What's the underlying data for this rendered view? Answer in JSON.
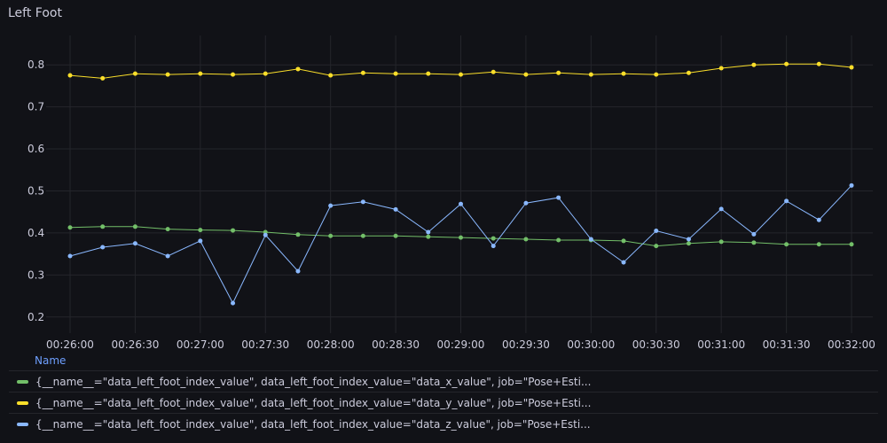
{
  "panel": {
    "title": "Left Foot"
  },
  "legend": {
    "header": "Name",
    "items": [
      {
        "label": "{__name__=\"data_left_foot_index_value\", data_left_foot_index_value=\"data_x_value\", job=\"Pose+Esti...",
        "color": "#73bf69"
      },
      {
        "label": "{__name__=\"data_left_foot_index_value\", data_left_foot_index_value=\"data_y_value\", job=\"Pose+Esti...",
        "color": "#fade2a"
      },
      {
        "label": "{__name__=\"data_left_foot_index_value\", data_left_foot_index_value=\"data_z_value\", job=\"Pose+Esti...",
        "color": "#8ab8ff"
      }
    ]
  },
  "chart_data": {
    "type": "line",
    "title": "Left Foot",
    "x_ticks": [
      "00:26:00",
      "00:26:30",
      "00:27:00",
      "00:27:30",
      "00:28:00",
      "00:28:30",
      "00:29:00",
      "00:29:30",
      "00:30:00",
      "00:30:30",
      "00:31:00",
      "00:31:30",
      "00:32:00"
    ],
    "y_ticks": [
      "0.2",
      "0.3",
      "0.4",
      "0.5",
      "0.6",
      "0.7",
      "0.8"
    ],
    "ylim": [
      0.17,
      0.87
    ],
    "x": [
      "00:26:00",
      "00:26:15",
      "00:26:30",
      "00:26:45",
      "00:27:00",
      "00:27:15",
      "00:27:30",
      "00:27:45",
      "00:28:00",
      "00:28:15",
      "00:28:30",
      "00:28:45",
      "00:29:00",
      "00:29:15",
      "00:29:30",
      "00:29:45",
      "00:30:00",
      "00:30:15",
      "00:30:30",
      "00:30:45",
      "00:31:00",
      "00:31:15",
      "00:31:30",
      "00:31:45",
      "00:32:00"
    ],
    "grid": true,
    "series": [
      {
        "color": "#73bf69",
        "values": [
          0.413,
          0.415,
          0.415,
          0.409,
          0.407,
          0.406,
          0.402,
          0.396,
          0.393,
          0.393,
          0.393,
          0.391,
          0.389,
          0.387,
          0.385,
          0.383,
          0.383,
          0.381,
          0.369,
          0.375,
          0.379,
          0.377,
          0.373,
          0.373,
          0.373
        ]
      },
      {
        "color": "#fade2a",
        "values": [
          0.775,
          0.768,
          0.779,
          0.777,
          0.779,
          0.777,
          0.779,
          0.79,
          0.775,
          0.781,
          0.779,
          0.779,
          0.777,
          0.783,
          0.777,
          0.781,
          0.777,
          0.779,
          0.777,
          0.781,
          0.792,
          0.8,
          0.802,
          0.802,
          0.794
        ]
      },
      {
        "color": "#8ab8ff",
        "values": [
          0.345,
          0.366,
          0.375,
          0.345,
          0.381,
          0.233,
          0.395,
          0.309,
          0.465,
          0.474,
          0.456,
          0.402,
          0.469,
          0.369,
          0.471,
          0.484,
          0.385,
          0.33,
          0.405,
          0.385,
          0.457,
          0.397,
          0.476,
          0.431,
          0.513
        ]
      }
    ]
  }
}
